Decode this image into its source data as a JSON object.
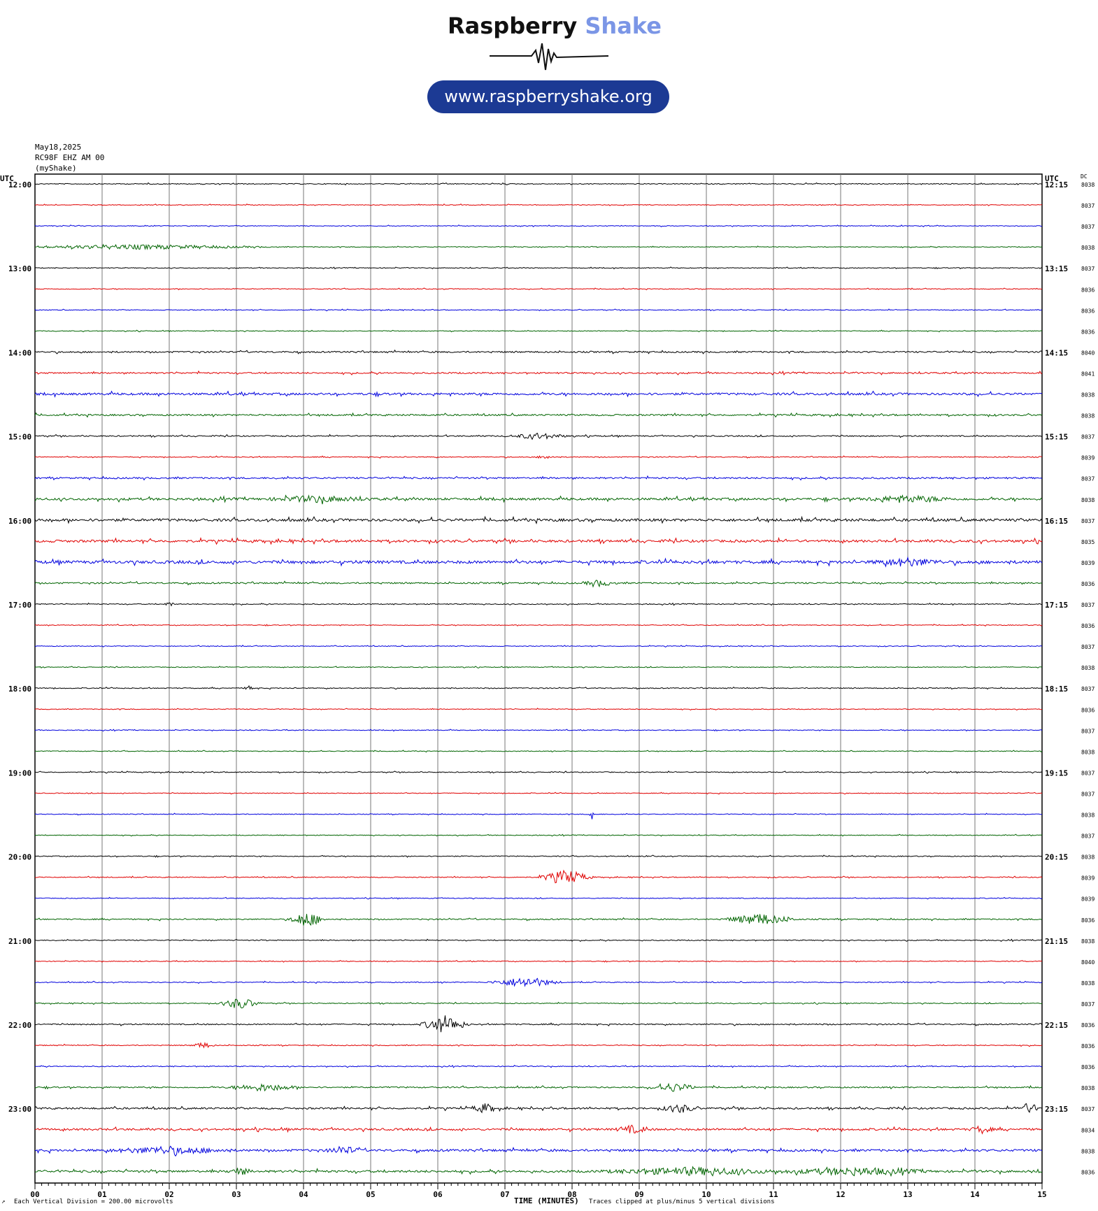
{
  "logo": {
    "brand_word": "Raspberry",
    "brand_word_2": "Shake",
    "url": "www.raspberryshake.org",
    "colors": {
      "brand_dark": "#111111",
      "brand_accent": "#7b96e6",
      "pill": "#1c3a94"
    }
  },
  "header": {
    "date": "May18,2025",
    "station": "RC98F EHZ AM 00",
    "source": "(myShake)"
  },
  "chart_data": {
    "type": "line",
    "title": "",
    "left_axis_label": "UTC",
    "right_axis_label": "UTC",
    "dc_label": "DC",
    "xlabel": "TIME (MINUTES)",
    "x_ticks": [
      "00",
      "01",
      "02",
      "03",
      "04",
      "05",
      "06",
      "07",
      "08",
      "09",
      "10",
      "11",
      "12",
      "13",
      "14",
      "15"
    ],
    "xlim": [
      0,
      15
    ],
    "scale_note": "Each Vertical Division =  200.00 microvolts",
    "clip_note": "Traces clipped at plus/minus 5 vertical divisions",
    "corner_mark": "↗",
    "row_colors": [
      "#000000",
      "#e00000",
      "#0000dd",
      "#006400"
    ],
    "hours": [
      {
        "left": "12:00",
        "right": "12:15"
      },
      {
        "left": "13:00",
        "right": "13:15"
      },
      {
        "left": "14:00",
        "right": "14:15"
      },
      {
        "left": "15:00",
        "right": "15:15"
      },
      {
        "left": "16:00",
        "right": "16:15"
      },
      {
        "left": "17:00",
        "right": "17:15"
      },
      {
        "left": "18:00",
        "right": "18:15"
      },
      {
        "left": "19:00",
        "right": "19:15"
      },
      {
        "left": "20:00",
        "right": "20:15"
      },
      {
        "left": "21:00",
        "right": "21:15"
      },
      {
        "left": "22:00",
        "right": "22:15"
      },
      {
        "left": "23:00",
        "right": "23:15"
      }
    ],
    "dc_values": [
      "8038",
      "8037",
      "8037",
      "8038",
      "8037",
      "8036",
      "8036",
      "8036",
      "8040",
      "8041",
      "8038",
      "8038",
      "8037",
      "8039",
      "8037",
      "8038",
      "8037",
      "8035",
      "8039",
      "8036",
      "8037",
      "8036",
      "8037",
      "8038",
      "8037",
      "8036",
      "8037",
      "8038",
      "8037",
      "8037",
      "8038",
      "8037",
      "8038",
      "8039",
      "8039",
      "8036",
      "8038",
      "8040",
      "8038",
      "8037",
      "8036",
      "8036",
      "8036",
      "8038",
      "8037",
      "8034",
      "8038",
      "8036"
    ],
    "noise": [
      0.6,
      0.5,
      0.5,
      0.5,
      0.5,
      0.5,
      0.5,
      0.5,
      1.0,
      1.0,
      1.5,
      1.1,
      0.8,
      0.6,
      1.1,
      1.6,
      1.8,
      1.7,
      2.0,
      1.0,
      0.6,
      0.5,
      0.5,
      0.5,
      0.6,
      0.5,
      0.5,
      0.5,
      0.6,
      0.5,
      0.5,
      0.5,
      0.6,
      0.6,
      0.5,
      0.8,
      0.6,
      0.5,
      0.6,
      0.6,
      0.8,
      0.6,
      0.6,
      0.9,
      1.2,
      1.4,
      1.5,
      1.5
    ],
    "events": [
      {
        "row": 3,
        "minute": 1.5,
        "amp": 3,
        "width": 2.2
      },
      {
        "row": 12,
        "minute": 7.5,
        "amp": 4,
        "width": 0.5
      },
      {
        "row": 13,
        "minute": 7.6,
        "amp": 3,
        "width": 0.15
      },
      {
        "row": 15,
        "minute": 4.2,
        "amp": 4,
        "width": 0.8
      },
      {
        "row": 15,
        "minute": 13.0,
        "amp": 4,
        "width": 0.8
      },
      {
        "row": 18,
        "minute": 13.0,
        "amp": 5,
        "width": 0.6
      },
      {
        "row": 19,
        "minute": 8.4,
        "amp": 4,
        "width": 0.3
      },
      {
        "row": 20,
        "minute": 2.0,
        "amp": 3,
        "width": 0.1
      },
      {
        "row": 24,
        "minute": 3.2,
        "amp": 3,
        "width": 0.1
      },
      {
        "row": 30,
        "minute": 8.3,
        "amp": 18,
        "width": 0.02
      },
      {
        "row": 33,
        "minute": 7.9,
        "amp": 10,
        "width": 0.45
      },
      {
        "row": 35,
        "minute": 4.05,
        "amp": 11,
        "width": 0.3
      },
      {
        "row": 35,
        "minute": 10.8,
        "amp": 8,
        "width": 0.6
      },
      {
        "row": 38,
        "minute": 7.3,
        "amp": 7,
        "width": 0.6
      },
      {
        "row": 39,
        "minute": 3.05,
        "amp": 8,
        "width": 0.35
      },
      {
        "row": 40,
        "minute": 6.1,
        "amp": 12,
        "width": 0.4
      },
      {
        "row": 41,
        "minute": 2.5,
        "amp": 4,
        "width": 0.2
      },
      {
        "row": 43,
        "minute": 3.4,
        "amp": 5,
        "width": 0.6
      },
      {
        "row": 43,
        "minute": 9.5,
        "amp": 6,
        "width": 0.4
      },
      {
        "row": 44,
        "minute": 6.7,
        "amp": 6,
        "width": 0.25
      },
      {
        "row": 44,
        "minute": 9.6,
        "amp": 6,
        "width": 0.3
      },
      {
        "row": 44,
        "minute": 14.8,
        "amp": 7,
        "width": 0.2
      },
      {
        "row": 45,
        "minute": 8.9,
        "amp": 5,
        "width": 0.3
      },
      {
        "row": 45,
        "minute": 14.1,
        "amp": 5,
        "width": 0.2
      },
      {
        "row": 46,
        "minute": 2.0,
        "amp": 5,
        "width": 1.0
      },
      {
        "row": 46,
        "minute": 4.6,
        "amp": 5,
        "width": 0.3
      },
      {
        "row": 47,
        "minute": 3.05,
        "amp": 5,
        "width": 0.2
      },
      {
        "row": 47,
        "minute": 9.8,
        "amp": 5,
        "width": 1.5
      },
      {
        "row": 47,
        "minute": 12.2,
        "amp": 5,
        "width": 1.2
      }
    ]
  }
}
